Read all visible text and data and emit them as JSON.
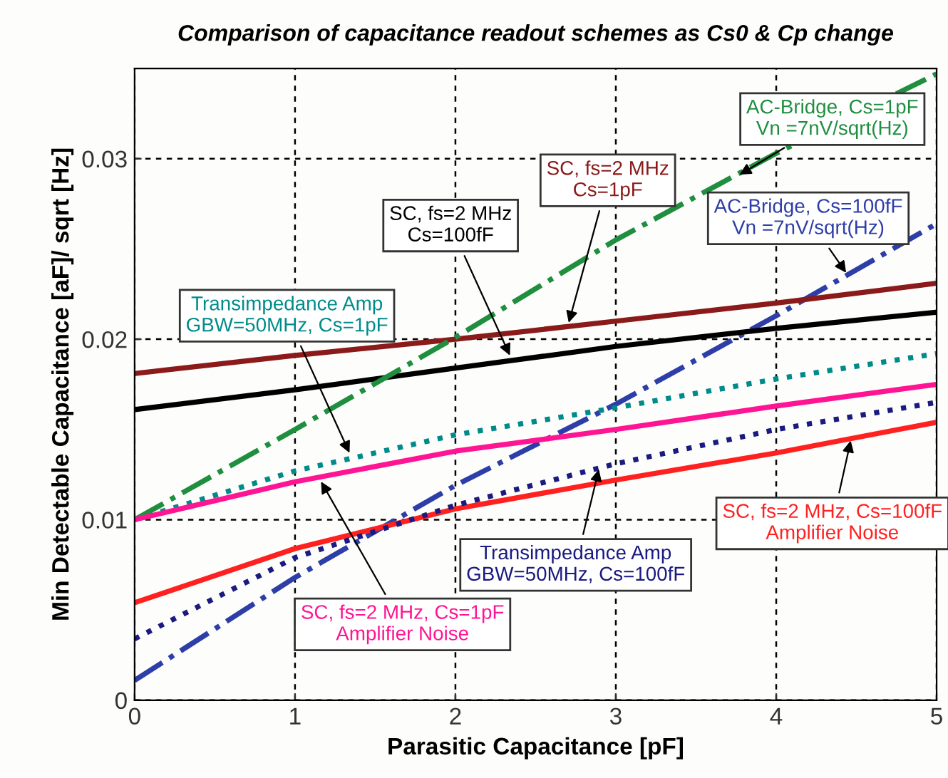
{
  "chart_data": {
    "type": "line",
    "title": "Comparison of capacitance readout schemes as Cs0 & Cp change",
    "xlabel": "Parasitic Capacitance [pF]",
    "ylabel": "Min Detectable Capacitance [aF]/ sqrt [Hz]",
    "x": [
      0,
      1,
      2,
      3,
      4,
      5
    ],
    "series": [
      {
        "color": "#2e3ea8",
        "line_style": "dashdot",
        "values": [
          0.0011,
          0.0068,
          0.0119,
          0.0164,
          0.0213,
          0.0264
        ]
      },
      {
        "color": "#008b8b",
        "line_style": "dotted",
        "values": [
          0.01,
          0.0127,
          0.0147,
          0.0162,
          0.0178,
          0.0192
        ]
      },
      {
        "color": "#000000",
        "line_style": "solid",
        "values": [
          0.0161,
          0.0172,
          0.0184,
          0.0196,
          0.0206,
          0.0215
        ]
      },
      {
        "color": "#8b1a1a",
        "line_style": "solid",
        "values": [
          0.0181,
          0.0191,
          0.02,
          0.021,
          0.022,
          0.0231
        ]
      },
      {
        "color": "#1f8f3f",
        "line_style": "dashdot",
        "values": [
          0.01,
          0.015,
          0.0201,
          0.0255,
          0.0303,
          0.0347
        ]
      },
      {
        "color": "#ff2020",
        "line_style": "solid",
        "values": [
          0.0054,
          0.0084,
          0.0106,
          0.0122,
          0.0137,
          0.0154
        ]
      },
      {
        "color": "#1a1a80",
        "line_style": "dotted",
        "values": [
          0.0034,
          0.0079,
          0.0108,
          0.0131,
          0.015,
          0.0165
        ]
      },
      {
        "color": "#ff1493",
        "line_style": "solid",
        "values": [
          0.01,
          0.0121,
          0.0138,
          0.015,
          0.0163,
          0.0175
        ]
      }
    ],
    "annotations": [
      {
        "text": "AC-Bridge, Cs=100fF\nVn =7nV/sqrt(Hz)",
        "x": 4.45,
        "y": 0.0235
      },
      {
        "text": "Transimpedance Amp\nGBW=50MHz, Cs=1pF",
        "x": 1.35,
        "y": 0.0135
      },
      {
        "text": "SC, fs=2 MHz\nCs=100fF",
        "x": 2.35,
        "y": 0.0189
      },
      {
        "text": "SC, fs=2 MHz\nCs=1pF",
        "x": 2.7,
        "y": 0.0207
      },
      {
        "text": "AC-Bridge, Cs=1pF\nVn =7nV/sqrt(Hz)",
        "x": 3.75,
        "y": 0.029
      },
      {
        "text": "SC, fs=2 MHz, Cs=100fF\nAmplifier Noise",
        "x": 4.47,
        "y": 0.0146
      },
      {
        "text": "Transimpedance Amp\nGBW=50MHz, Cs=100fF",
        "x": 2.9,
        "y": 0.013
      },
      {
        "text": "SC, fs=2 MHz, Cs=1pF\nAmplifier Noise",
        "x": 1.15,
        "y": 0.0123
      }
    ],
    "xlim": [
      0,
      5
    ],
    "ylim": [
      0,
      0.035
    ],
    "xticks": [
      0,
      1,
      2,
      3,
      4,
      5
    ],
    "yticks": [
      0,
      0.01,
      0.02,
      0.03
    ],
    "grid": true,
    "marker": "none"
  }
}
